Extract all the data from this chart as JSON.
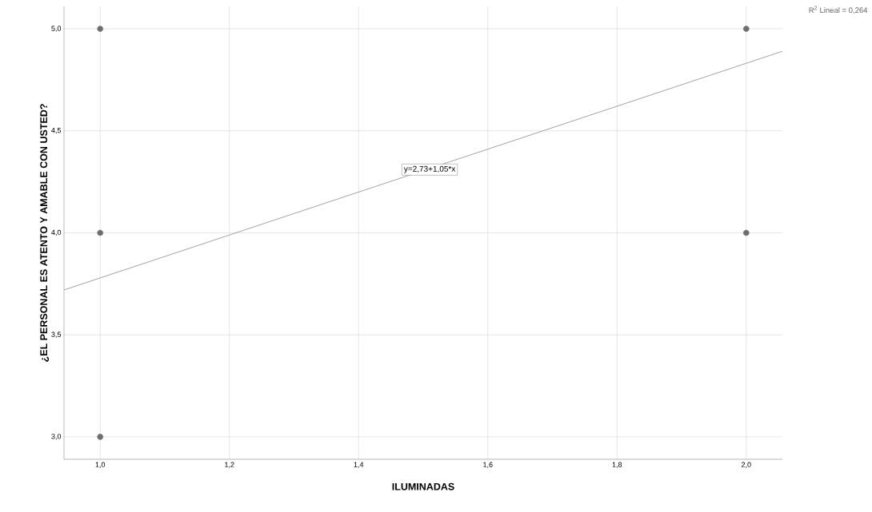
{
  "chart_data": {
    "type": "scatter",
    "xlabel": "ILUMINADAS",
    "ylabel": "¿EL PERSONAL ES ATENTO Y AMABLE CON USTED?",
    "series": [
      {
        "marker": "circle",
        "color": "#6e6e6e",
        "x": [
          1.0,
          1.0,
          1.0,
          2.0,
          2.0
        ],
        "values": [
          5.0,
          4.0,
          3.0,
          5.0,
          4.0
        ]
      },
      {
        "type": "line",
        "marker": "none",
        "color": "#999999",
        "x": [
          0.944,
          2.056
        ],
        "values": [
          3.72,
          4.89
        ]
      }
    ],
    "xlim": [
      0.944,
      2.056
    ],
    "ylim": [
      2.89,
      5.11
    ],
    "xticks": [
      {
        "value": 1.0,
        "label": "1,0"
      },
      {
        "value": 1.2,
        "label": "1,2"
      },
      {
        "value": 1.4,
        "label": "1,4"
      },
      {
        "value": 1.6,
        "label": "1,6"
      },
      {
        "value": 1.8,
        "label": "1,8"
      },
      {
        "value": 2.0,
        "label": "2,0"
      }
    ],
    "yticks": [
      {
        "value": 3.0,
        "label": "3,0"
      },
      {
        "value": 3.5,
        "label": "3,5"
      },
      {
        "value": 4.0,
        "label": "4,0"
      },
      {
        "value": 4.5,
        "label": "4,5"
      },
      {
        "value": 5.0,
        "label": "5,0"
      }
    ],
    "grid": true,
    "line_style": "solid",
    "annotations": [
      {
        "text": "y=2,73+1,05*x",
        "x": 1.51,
        "y": 4.31
      },
      "R$^{2}$ Lineal = 0,264"
    ]
  }
}
